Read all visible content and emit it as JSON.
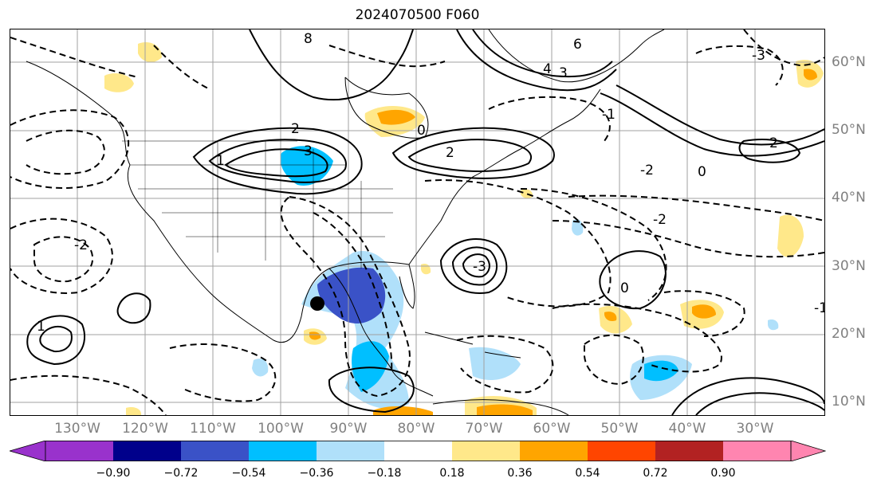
{
  "title": "2024070500 F060",
  "lon_labels": [
    "130°W",
    "120°W",
    "110°W",
    "100°W",
    "90°W",
    "80°W",
    "70°W",
    "60°W",
    "50°W",
    "40°W",
    "30°W"
  ],
  "lat_labels": [
    "60°N",
    "50°N",
    "40°N",
    "30°N",
    "20°N",
    "10°N"
  ],
  "colorbar": {
    "labels": [
      "−0.90",
      "−0.72",
      "−0.54",
      "−0.36",
      "−0.18",
      "0.18",
      "0.36",
      "0.54",
      "0.72",
      "0.90"
    ],
    "colors": [
      "#9932cc",
      "#00008b",
      "#3a52c7",
      "#00bfff",
      "#b0e0fa",
      "#ffffff",
      "#ffe88a",
      "#ffa500",
      "#ff4500",
      "#b22222",
      "#ff85b0"
    ]
  },
  "colors": {
    "negative_fill": "#00bfff",
    "positive_fill": "#ffa500",
    "grid": "#a0a0a0",
    "axis_label": "#808080"
  },
  "contour_labels": [
    "8",
    "6",
    "4",
    "3",
    "2",
    "1",
    "0",
    "-1",
    "-2",
    "-3",
    "3",
    "2",
    "0",
    "-1",
    "-3",
    "-2",
    "1",
    "2",
    "-2",
    "0"
  ]
}
